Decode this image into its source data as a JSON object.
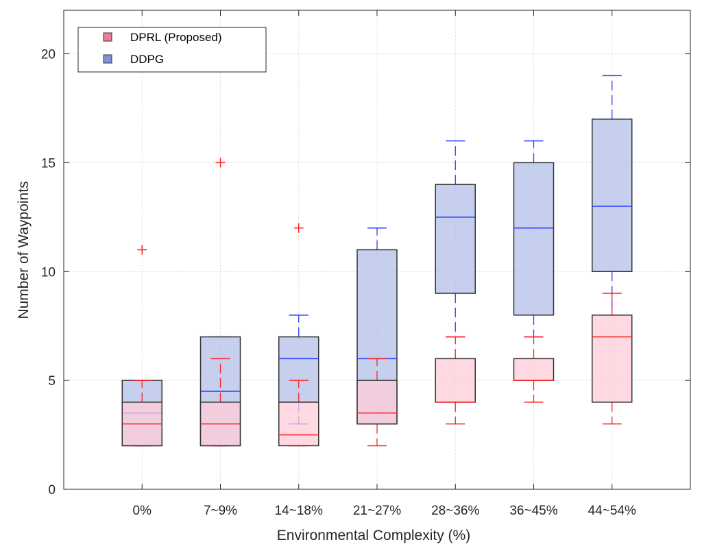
{
  "chart_data": {
    "type": "box",
    "title": "",
    "xlabel": "Environmental Complexity (%)",
    "ylabel": "Number of Waypoints",
    "ylim": [
      0,
      22
    ],
    "yticks": [
      0,
      5,
      10,
      15,
      20
    ],
    "grid": true,
    "legend_position": "top-left",
    "categories": [
      "0%",
      "7~9%",
      "14~18%",
      "21~27%",
      "28~36%",
      "36~45%",
      "44~54%"
    ],
    "series": [
      {
        "name": "DDPG",
        "fill": "#b3bfe8",
        "line": "#2b3bff",
        "boxes": [
          {
            "lower_whisker": 2,
            "q1": 2,
            "median": 3.5,
            "q3": 5,
            "upper_whisker": 5,
            "outliers": []
          },
          {
            "lower_whisker": 2,
            "q1": 2,
            "median": 4.5,
            "q3": 7,
            "upper_whisker": 7,
            "outliers": []
          },
          {
            "lower_whisker": 3,
            "q1": 4,
            "median": 6,
            "q3": 7,
            "upper_whisker": 8,
            "outliers": []
          },
          {
            "lower_whisker": 3,
            "q1": 3,
            "median": 6,
            "q3": 11,
            "upper_whisker": 12,
            "outliers": []
          },
          {
            "lower_whisker": 7,
            "q1": 9,
            "median": 12.5,
            "q3": 14,
            "upper_whisker": 16,
            "outliers": []
          },
          {
            "lower_whisker": 7,
            "q1": 8,
            "median": 12,
            "q3": 15,
            "upper_whisker": 16,
            "outliers": []
          },
          {
            "lower_whisker": 8,
            "q1": 10,
            "median": 13,
            "q3": 17,
            "upper_whisker": 19,
            "outliers": []
          }
        ]
      },
      {
        "name": "DPRL (Proposed)",
        "fill": "#ffccd7",
        "line": "#ff2020",
        "boxes": [
          {
            "lower_whisker": 2,
            "q1": 2,
            "median": 3,
            "q3": 4,
            "upper_whisker": 5,
            "outliers": [
              11
            ]
          },
          {
            "lower_whisker": 2,
            "q1": 2,
            "median": 3,
            "q3": 4,
            "upper_whisker": 6,
            "outliers": [
              15
            ]
          },
          {
            "lower_whisker": 2,
            "q1": 2,
            "median": 2.5,
            "q3": 4,
            "upper_whisker": 5,
            "outliers": [
              12
            ]
          },
          {
            "lower_whisker": 2,
            "q1": 3,
            "median": 3.5,
            "q3": 5,
            "upper_whisker": 6,
            "outliers": []
          },
          {
            "lower_whisker": 3,
            "q1": 4,
            "median": 4,
            "q3": 6,
            "upper_whisker": 7,
            "outliers": []
          },
          {
            "lower_whisker": 4,
            "q1": 5,
            "median": 5,
            "q3": 6,
            "upper_whisker": 7,
            "outliers": []
          },
          {
            "lower_whisker": 3,
            "q1": 4,
            "median": 7,
            "q3": 8,
            "upper_whisker": 9,
            "outliers": []
          }
        ]
      }
    ],
    "legend": [
      {
        "name": "DPRL (Proposed)",
        "color": "#ea7f9a"
      },
      {
        "name": "DDPG",
        "color": "#8093d9"
      }
    ]
  }
}
